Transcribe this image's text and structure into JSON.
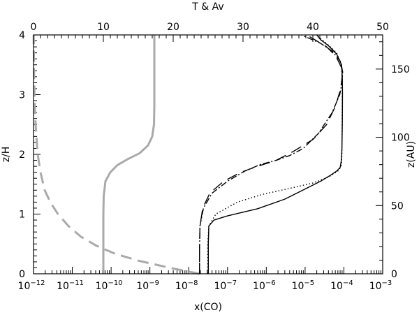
{
  "chart_data": {
    "type": "line",
    "xlabel": "x(CO)",
    "x2label": "T & Av",
    "ylabel": "z/H",
    "y2label": "z(AU)",
    "xscale": "log",
    "xlim": [
      1e-12,
      0.001
    ],
    "x2lim": [
      0,
      50
    ],
    "ylim": [
      0,
      4
    ],
    "y2lim": [
      0,
      175
    ],
    "grid": false,
    "x_ticks": [
      {
        "base": "10",
        "exp": "−12"
      },
      {
        "base": "10",
        "exp": "−11"
      },
      {
        "base": "10",
        "exp": "−10"
      },
      {
        "base": "10",
        "exp": "−9"
      },
      {
        "base": "10",
        "exp": "−8"
      },
      {
        "base": "10",
        "exp": "−7"
      },
      {
        "base": "10",
        "exp": "−6"
      },
      {
        "base": "10",
        "exp": "−5"
      },
      {
        "base": "10",
        "exp": "−4"
      },
      {
        "base": "10",
        "exp": "−3"
      }
    ],
    "x2_ticks": [
      "0",
      "10",
      "20",
      "30",
      "40",
      "50"
    ],
    "y_ticks": [
      "0",
      "1",
      "2",
      "3",
      "4"
    ],
    "y2_ticks": [
      "0",
      "50",
      "100",
      "150"
    ],
    "series": [
      {
        "axis": "top",
        "style": "solid",
        "color": "#aaaaaa",
        "points": [
          [
            10.0,
            0
          ],
          [
            10.0,
            0.5
          ],
          [
            10.0,
            1.0
          ],
          [
            10.05,
            1.3
          ],
          [
            10.3,
            1.55
          ],
          [
            11.0,
            1.7
          ],
          [
            12.0,
            1.82
          ],
          [
            13.5,
            1.92
          ],
          [
            15.2,
            2.02
          ],
          [
            16.4,
            2.15
          ],
          [
            17.0,
            2.3
          ],
          [
            17.25,
            2.5
          ],
          [
            17.3,
            2.8
          ],
          [
            17.3,
            3.2
          ],
          [
            17.3,
            4.0
          ]
        ]
      },
      {
        "axis": "top",
        "style": "dashed",
        "color": "#aaaaaa",
        "points": [
          [
            23.8,
            0
          ],
          [
            19.5,
            0.1
          ],
          [
            15.0,
            0.22
          ],
          [
            11.8,
            0.33
          ],
          [
            9.0,
            0.47
          ],
          [
            6.8,
            0.62
          ],
          [
            5.0,
            0.8
          ],
          [
            3.5,
            1.0
          ],
          [
            2.4,
            1.2
          ],
          [
            1.6,
            1.4
          ],
          [
            1.0,
            1.7
          ],
          [
            0.6,
            2.0
          ],
          [
            0.35,
            2.4
          ],
          [
            0.18,
            2.8
          ],
          [
            0.08,
            3.3
          ],
          [
            0.02,
            4.0
          ]
        ]
      },
      {
        "axis": "bottom",
        "style": "solid",
        "color": "#000000",
        "points": [
          [
            3.2e-08,
            0
          ],
          [
            3.2e-08,
            0.5
          ],
          [
            3.3e-08,
            0.8
          ],
          [
            4.5e-08,
            0.9
          ],
          [
            1e-07,
            0.97
          ],
          [
            6e-07,
            1.09
          ],
          [
            3e-06,
            1.25
          ],
          [
            1e-05,
            1.42
          ],
          [
            2.5e-05,
            1.55
          ],
          [
            4.5e-05,
            1.65
          ],
          [
            6.5e-05,
            1.72
          ],
          [
            8e-05,
            1.78
          ],
          [
            8.6e-05,
            1.9
          ],
          [
            8.9e-05,
            2.1
          ],
          [
            9.1e-05,
            2.5
          ],
          [
            9.2e-05,
            3.0
          ],
          [
            9.1e-05,
            3.3
          ],
          [
            8.7e-05,
            3.5
          ],
          [
            6.5e-05,
            3.68
          ],
          [
            4e-05,
            3.82
          ],
          [
            2.5e-05,
            3.92
          ],
          [
            2e-05,
            4.0
          ]
        ]
      },
      {
        "axis": "bottom",
        "style": "dotted",
        "color": "#000000",
        "points": [
          [
            3.1e-08,
            0
          ],
          [
            3.1e-08,
            0.5
          ],
          [
            3.3e-08,
            0.8
          ],
          [
            5e-08,
            1.0
          ],
          [
            1.8e-07,
            1.2
          ],
          [
            8e-07,
            1.33
          ],
          [
            4e-06,
            1.43
          ],
          [
            1.6e-05,
            1.52
          ],
          [
            4e-05,
            1.62
          ],
          [
            7e-05,
            1.72
          ],
          [
            8.6e-05,
            1.8
          ],
          [
            8.9e-05,
            2.0
          ],
          [
            9e-05,
            2.5
          ],
          [
            9.1e-05,
            3.0
          ],
          [
            9e-05,
            3.3
          ],
          [
            8.6e-05,
            3.5
          ],
          [
            6.5e-05,
            3.7
          ],
          [
            4e-05,
            3.83
          ],
          [
            2.5e-05,
            3.94
          ],
          [
            2e-05,
            4.0
          ]
        ]
      },
      {
        "axis": "bottom",
        "style": "dashed",
        "color": "#000000",
        "points": [
          [
            1.9e-08,
            0
          ],
          [
            1.9e-08,
            0.4
          ],
          [
            1.95e-08,
            0.8
          ],
          [
            2.3e-08,
            1.1
          ],
          [
            3.5e-08,
            1.35
          ],
          [
            8e-08,
            1.55
          ],
          [
            2.2e-07,
            1.7
          ],
          [
            6e-07,
            1.8
          ],
          [
            1.8e-06,
            1.9
          ],
          [
            5e-06,
            2.05
          ],
          [
            1.6e-05,
            2.25
          ],
          [
            3.6e-05,
            2.5
          ],
          [
            6e-05,
            2.8
          ],
          [
            8.3e-05,
            3.1
          ],
          [
            9e-05,
            3.3
          ],
          [
            8.7e-05,
            3.45
          ],
          [
            6.3e-05,
            3.64
          ],
          [
            3.6e-05,
            3.8
          ],
          [
            2e-05,
            3.9
          ],
          [
            1.1e-05,
            4.0
          ]
        ]
      },
      {
        "axis": "bottom",
        "style": "dashdot",
        "color": "#000000",
        "points": [
          [
            1.9e-08,
            0
          ],
          [
            1.9e-08,
            0.4
          ],
          [
            1.95e-08,
            0.8
          ],
          [
            2.4e-08,
            1.1
          ],
          [
            4e-08,
            1.35
          ],
          [
            1e-07,
            1.55
          ],
          [
            2.8e-07,
            1.72
          ],
          [
            7e-07,
            1.83
          ],
          [
            1.8e-06,
            1.9
          ],
          [
            4e-06,
            1.98
          ],
          [
            9e-06,
            2.1
          ],
          [
            2.2e-05,
            2.35
          ],
          [
            5e-05,
            2.7
          ],
          [
            7.8e-05,
            3.0
          ],
          [
            9e-05,
            3.2
          ],
          [
            9.3e-05,
            3.38
          ],
          [
            8.3e-05,
            3.55
          ],
          [
            5e-05,
            3.73
          ],
          [
            2.5e-05,
            3.86
          ],
          [
            1.2e-05,
            3.95
          ],
          [
            8e-06,
            4.0
          ]
        ]
      }
    ]
  }
}
